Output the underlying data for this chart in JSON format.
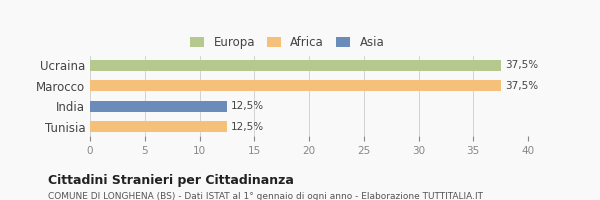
{
  "categories": [
    "Tunisia",
    "India",
    "Marocco",
    "Ucraina"
  ],
  "values": [
    12.5,
    12.5,
    37.5,
    37.5
  ],
  "colors": [
    "#f5c07a",
    "#6b8cba",
    "#f5c07a",
    "#b5c98e"
  ],
  "bar_labels": [
    "12,5%",
    "12,5%",
    "37,5%",
    "37,5%"
  ],
  "xlim": [
    0,
    40
  ],
  "xticks": [
    0,
    5,
    10,
    15,
    20,
    25,
    30,
    35,
    40
  ],
  "legend_items": [
    {
      "label": "Europa",
      "color": "#b5c98e"
    },
    {
      "label": "Africa",
      "color": "#f5c07a"
    },
    {
      "label": "Asia",
      "color": "#6b8cba"
    }
  ],
  "title": "Cittadini Stranieri per Cittadinanza",
  "subtitle": "COMUNE DI LONGHENA (BS) - Dati ISTAT al 1° gennaio di ogni anno - Elaborazione TUTTITALIA.IT",
  "bg_color": "#f9f9f9",
  "bar_height": 0.55
}
